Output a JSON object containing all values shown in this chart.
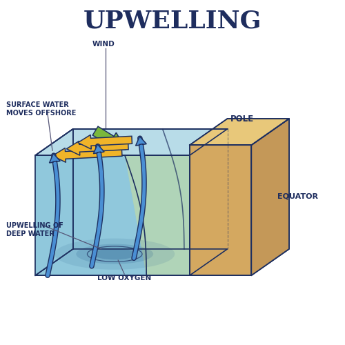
{
  "title": "UPWELLING",
  "title_fontsize": 26,
  "title_color": "#1e2d5e",
  "background_color": "#ffffff",
  "labels": {
    "wind": "WIND",
    "pole": "POLE",
    "equator": "EQUATOR",
    "surface_water": "SURFACE WATER\nMOVES OFFSHORE",
    "upwelling": "UPWELLING OF\nDEEP WATER",
    "low_oxygen": "LOW OXYGEN"
  },
  "colors": {
    "ocean_top": "#b8dce8",
    "ocean_front_left": "#8ec8e0",
    "ocean_front_right": "#a8d4c0",
    "ocean_back_left": "#a0ccd8",
    "ocean_back_right": "#b8d8b8",
    "land_top": "#e8c87a",
    "land_front": "#d4a860",
    "land_side": "#c49858",
    "wind_arrow": "#7ab83c",
    "surface_arrow": "#f0b429",
    "upwelling_arrow": "#4a8fd4",
    "outline": "#1e3060",
    "deep_spot": "#2a6090",
    "ocean_bottom": "#90b8cc"
  }
}
